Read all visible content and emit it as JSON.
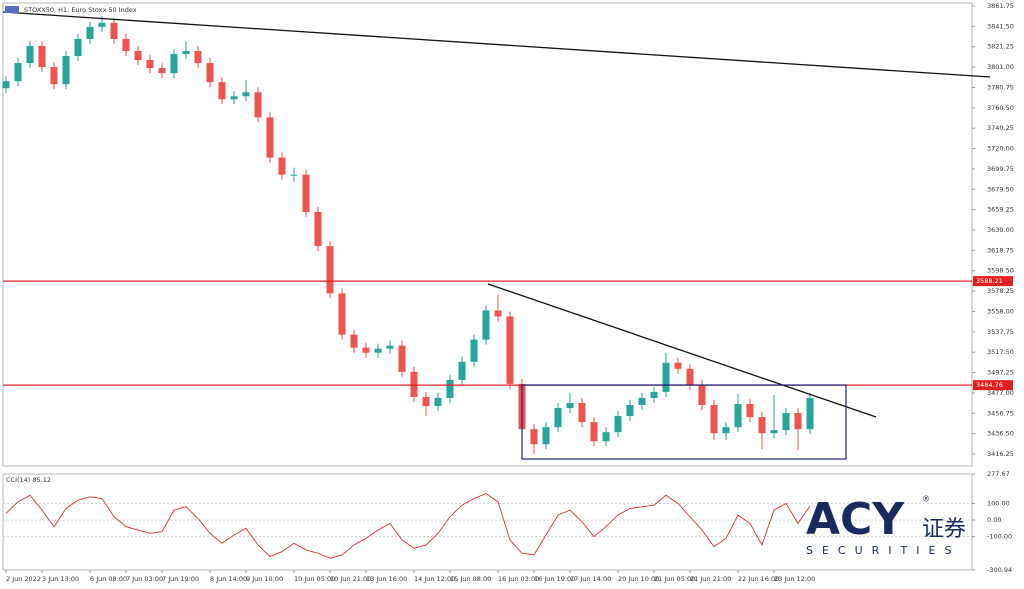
{
  "chart_data": [
    {
      "type": "candlestick",
      "title": "STOXX50, H1: Euro Stoxx 50 Index",
      "categories": [
        "2 Jun 2022",
        null,
        null,
        "3 Jun 13:00",
        null,
        null,
        null,
        "6 Jun 08:00",
        null,
        null,
        "7 Jun 03:00",
        null,
        null,
        "7 Jun 19:00",
        null,
        null,
        null,
        "8 Jun 14:00",
        null,
        null,
        "9 Jun 10:00",
        null,
        null,
        null,
        "10 Jun 05:00",
        null,
        null,
        "10 Jun 21:00",
        null,
        null,
        "13 Jun 16:00",
        null,
        null,
        null,
        "14 Jun 12:00",
        null,
        null,
        "15 Jun 08:00",
        null,
        null,
        null,
        "16 Jun 03:00",
        null,
        null,
        "16 Jun 19:00",
        null,
        null,
        "17 Jun 14:00",
        null,
        null,
        null,
        "20 Jun 10:00",
        null,
        null,
        "21 Jun 05:00",
        null,
        null,
        "21 Jun 21:00",
        null,
        null,
        null,
        "22 Jun 16:00",
        null,
        null,
        "23 Jun 12:00",
        null,
        null,
        null
      ],
      "open": [
        3780,
        3787,
        3805,
        3822,
        3801,
        3784,
        3812,
        3829,
        3841,
        3845,
        3829,
        3817,
        3808,
        3800,
        3795,
        3814,
        3817,
        3805,
        3786,
        3769,
        3772,
        3776,
        3751,
        3711,
        3694,
        3694,
        3657,
        3623,
        3576,
        3535,
        3522,
        3517,
        3521,
        3524,
        3498,
        3473,
        3464,
        3472,
        3490,
        3508,
        3530,
        3559,
        3553,
        3486,
        3441,
        3426,
        3443,
        3462,
        3467,
        3448,
        3429,
        3438,
        3454,
        3465,
        3472,
        3478,
        3507,
        3501,
        3485,
        3465,
        3437,
        3443,
        3466,
        3453,
        3437,
        3440,
        3457,
        3441
      ],
      "high": [
        3792,
        3810,
        3827,
        3827,
        3806,
        3817,
        3834,
        3846,
        3852,
        3850,
        3834,
        3822,
        3813,
        3805,
        3819,
        3827,
        3822,
        3810,
        3791,
        3777,
        3788,
        3781,
        3756,
        3716,
        3701,
        3699,
        3662,
        3628,
        3581,
        3540,
        3527,
        3526,
        3529,
        3529,
        3503,
        3478,
        3477,
        3495,
        3513,
        3535,
        3564,
        3575,
        3558,
        3491,
        3446,
        3448,
        3467,
        3477,
        3472,
        3453,
        3443,
        3459,
        3470,
        3477,
        3483,
        3517,
        3512,
        3506,
        3490,
        3470,
        3448,
        3476,
        3471,
        3458,
        3475,
        3462,
        3462,
        3477
      ],
      "low": [
        3775,
        3782,
        3800,
        3796,
        3779,
        3779,
        3807,
        3824,
        3836,
        3824,
        3812,
        3803,
        3795,
        3790,
        3790,
        3809,
        3800,
        3781,
        3764,
        3764,
        3767,
        3746,
        3706,
        3689,
        3687,
        3652,
        3618,
        3571,
        3530,
        3517,
        3512,
        3512,
        3516,
        3493,
        3468,
        3454,
        3459,
        3467,
        3485,
        3503,
        3525,
        3548,
        3481,
        3436,
        3416,
        3421,
        3438,
        3457,
        3443,
        3424,
        3424,
        3433,
        3449,
        3460,
        3467,
        3473,
        3496,
        3480,
        3460,
        3430,
        3430,
        3438,
        3448,
        3421,
        3432,
        3435,
        3420,
        3436
      ],
      "close": [
        3787,
        3805,
        3822,
        3801,
        3784,
        3812,
        3829,
        3841,
        3845,
        3829,
        3817,
        3808,
        3800,
        3795,
        3814,
        3817,
        3805,
        3786,
        3769,
        3772,
        3776,
        3751,
        3711,
        3694,
        3694,
        3657,
        3623,
        3576,
        3535,
        3522,
        3517,
        3521,
        3524,
        3498,
        3473,
        3464,
        3472,
        3490,
        3508,
        3530,
        3559,
        3553,
        3486,
        3441,
        3426,
        3443,
        3462,
        3467,
        3448,
        3429,
        3438,
        3454,
        3465,
        3472,
        3478,
        3507,
        3501,
        3485,
        3465,
        3437,
        3443,
        3466,
        3453,
        3437,
        3440,
        3457,
        3441,
        3472
      ],
      "up_color": "#26a69a",
      "down_color": "#ef5350",
      "ylim": [
        3404.35,
        3864.73
      ],
      "yticks": [
        3861.75,
        {
          "value": 3841.5,
          "label": "3841.50"
        },
        3821.25,
        {
          "value": 3801,
          "label": "3801.00"
        },
        3780.75,
        {
          "value": 3760.5,
          "label": "3760.50"
        },
        3740.25,
        {
          "value": 3720,
          "label": "3720.00"
        },
        3699.75,
        {
          "value": 3679.5,
          "label": "3679.50"
        },
        3659.25,
        {
          "value": 3639,
          "label": "3639.00"
        },
        3618.75,
        {
          "value": 3598.5,
          "label": "3598.50"
        },
        3578.25,
        {
          "value": 3558,
          "label": "3558.00"
        },
        3537.75,
        {
          "value": 3517.5,
          "label": "3517.50"
        },
        3497.25,
        {
          "value": 3477,
          "label": "3477.00"
        },
        3456.75,
        {
          "value": 3436.5,
          "label": "3436.50"
        },
        3416.25
      ],
      "levels": [
        {
          "value": 3588.21,
          "color": "#e02020"
        },
        {
          "value": 3484.76,
          "color": "#e02020"
        }
      ]
    },
    {
      "type": "line",
      "title": "CCI(14) 85.12",
      "color": "#e03030",
      "values": [
        40,
        110,
        150,
        60,
        -40,
        70,
        120,
        140,
        130,
        20,
        -40,
        -60,
        -80,
        -70,
        60,
        80,
        10,
        -80,
        -140,
        -90,
        -50,
        -150,
        -220,
        -190,
        -140,
        -180,
        -200,
        -230,
        -210,
        -150,
        -110,
        -60,
        -20,
        -120,
        -170,
        -150,
        -80,
        20,
        90,
        130,
        160,
        110,
        -120,
        -200,
        -210,
        -90,
        30,
        60,
        -10,
        -100,
        -40,
        30,
        70,
        80,
        90,
        150,
        100,
        20,
        -60,
        -160,
        -110,
        30,
        -20,
        -150,
        60,
        100,
        -20,
        85.12
      ],
      "ylim": [
        -300.94,
        277.67
      ],
      "yticks": [
        {
          "value": 277.67,
          "label": "277.67"
        },
        {
          "value": 100,
          "label": "100.00"
        },
        {
          "value": 0,
          "label": "0.00"
        },
        {
          "value": -100,
          "label": "-100.00"
        },
        {
          "value": -300.94,
          "label": "-300.94"
        }
      ]
    }
  ],
  "watermark": {
    "brand": "ACY",
    "mark": "®",
    "chinese": "证券",
    "tagline": "SECURITIES"
  }
}
